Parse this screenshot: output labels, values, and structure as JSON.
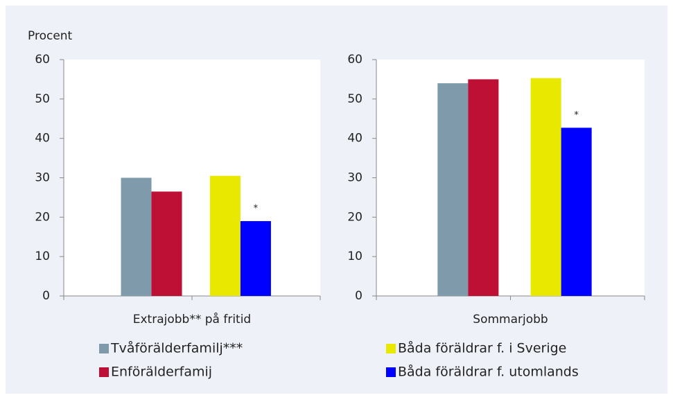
{
  "chart_data": [
    {
      "type": "bar",
      "ylabel": "Procent",
      "xlabel": "Extrajobb** på fritid",
      "values": [
        30,
        26.5,
        30.5,
        19
      ],
      "annotations": [
        null,
        null,
        null,
        "*"
      ],
      "ylim": [
        0,
        60
      ],
      "yticks": [
        0,
        10,
        20,
        30,
        40,
        50,
        60
      ]
    },
    {
      "type": "bar",
      "xlabel": "Sommarjobb",
      "values": [
        54,
        55,
        55.3,
        42.7
      ],
      "annotations": [
        null,
        null,
        null,
        "*"
      ],
      "ylim": [
        0,
        60
      ],
      "yticks": [
        0,
        10,
        20,
        30,
        40,
        50,
        60
      ]
    }
  ],
  "legend": {
    "items": [
      {
        "name": "Tvåförälderfamilj***",
        "color": "#7f9aab"
      },
      {
        "name": "Enförälderfamij",
        "color": "#be0f34"
      },
      {
        "name": "Båda föräldrar f. i Sverige",
        "color": "#e8e800"
      },
      {
        "name": "Båda föräldrar f. utomlands",
        "color": "#0000ff"
      }
    ]
  }
}
